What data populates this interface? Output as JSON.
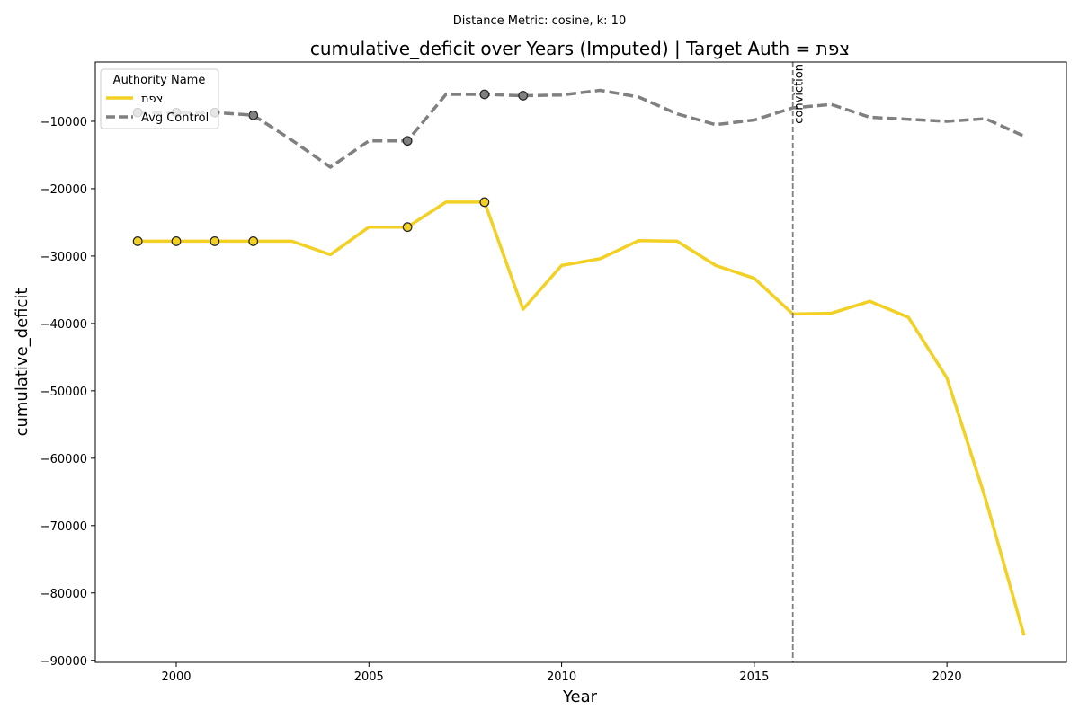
{
  "suptitle": "Distance Metric: cosine, k: 10",
  "chart_data": {
    "type": "line",
    "title": "cumulative_deficit over Years (Imputed) | Target Auth = צפת",
    "xlabel": "Year",
    "ylabel": "cumulative_deficit",
    "xlim": [
      1997.9,
      2023.1
    ],
    "ylim": [
      -90300,
      -1200
    ],
    "x_ticks": [
      2000,
      2005,
      2010,
      2015,
      2020
    ],
    "x_tick_labels": [
      "2000",
      "2005",
      "2010",
      "2015",
      "2020"
    ],
    "y_ticks": [
      -90000,
      -80000,
      -70000,
      -60000,
      -50000,
      -40000,
      -30000,
      -20000,
      -10000
    ],
    "y_tick_labels": [
      "−90000",
      "−80000",
      "−70000",
      "−60000",
      "−50000",
      "−40000",
      "−30000",
      "−20000",
      "−10000"
    ],
    "grid": false,
    "legend": {
      "title": "Authority Name",
      "placement": "top-left",
      "entries": [
        "צפת",
        "Avg Control"
      ]
    },
    "annotations": [
      {
        "type": "vline",
        "x": 2016,
        "label": "conviction",
        "style": "dashed",
        "color": "#808080"
      }
    ],
    "x": [
      1999,
      2000,
      2001,
      2002,
      2003,
      2004,
      2005,
      2006,
      2007,
      2008,
      2009,
      2010,
      2011,
      2012,
      2013,
      2014,
      2015,
      2016,
      2017,
      2018,
      2019,
      2020,
      2021,
      2022
    ],
    "series": [
      {
        "name": "צפת",
        "color": "#f2d024",
        "style": "solid",
        "values": [
          -27800,
          -27800,
          -27800,
          -27800,
          -27800,
          -29800,
          -25700,
          -25700,
          -22000,
          -22000,
          -37900,
          -31400,
          -30400,
          -27700,
          -27800,
          -31400,
          -33300,
          -38600,
          -38500,
          -36700,
          -39100,
          -48100,
          -66000,
          -86300
        ],
        "imputed_points": [
          {
            "x": 1999,
            "y": -27800
          },
          {
            "x": 2000,
            "y": -27800
          },
          {
            "x": 2001,
            "y": -27800
          },
          {
            "x": 2002,
            "y": -27800
          },
          {
            "x": 2006,
            "y": -25700
          },
          {
            "x": 2008,
            "y": -22000
          }
        ]
      },
      {
        "name": "Avg Control",
        "color": "#808080",
        "style": "dashed",
        "values": [
          -8700,
          -8700,
          -8700,
          -9100,
          -12800,
          -16800,
          -12900,
          -12900,
          -6000,
          -6000,
          -6200,
          -6100,
          -5400,
          -6400,
          -8900,
          -10500,
          -9800,
          -8000,
          -7500,
          -9400,
          -9700,
          -10000,
          -9600,
          -12200
        ],
        "imputed_points": [
          {
            "x": 1999,
            "y": -8700
          },
          {
            "x": 2000,
            "y": -8700
          },
          {
            "x": 2001,
            "y": -8700
          },
          {
            "x": 2002,
            "y": -9100
          },
          {
            "x": 2006,
            "y": -12900
          },
          {
            "x": 2008,
            "y": -6000
          },
          {
            "x": 2009,
            "y": -6200
          }
        ]
      }
    ]
  }
}
